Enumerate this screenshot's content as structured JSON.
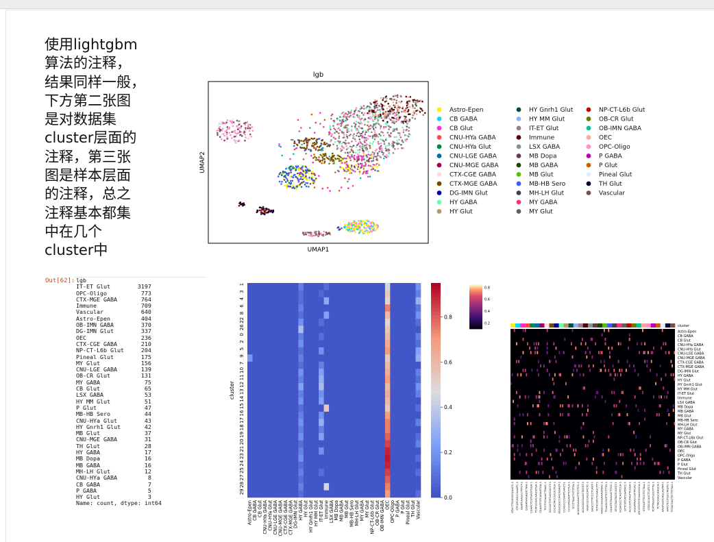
{
  "markdown_text": "使用lightgbm\n算法的注释，\n结果同样一般，\n下方第二张图\n是对数据集\ncluster层面的\n注释，第三张\n图是样本层面\n的注释，总之\n注释基本都集\n中在几个\ncluster中",
  "output": {
    "prompt": "Out[62]:",
    "header": "lgb",
    "rows": [
      [
        "IT-ET Glut",
        "3197"
      ],
      [
        "OPC-Oligo",
        "773"
      ],
      [
        "CTX-MGE GABA",
        "764"
      ],
      [
        "Immune",
        "709"
      ],
      [
        "Vascular",
        "640"
      ],
      [
        "Astro-Epen",
        "404"
      ],
      [
        "OB-IMN GABA",
        "370"
      ],
      [
        "DG-IMN Glut",
        "337"
      ],
      [
        "OEC",
        "236"
      ],
      [
        "CTX-CGE GABA",
        "210"
      ],
      [
        "NP-CT-L6b Glut",
        "204"
      ],
      [
        "Pineal Glut",
        "175"
      ],
      [
        "MY Glut",
        "156"
      ],
      [
        "CNU-LGE GABA",
        "139"
      ],
      [
        "OB-CR Glut",
        "131"
      ],
      [
        "MY GABA",
        "75"
      ],
      [
        "CB Glut",
        "65"
      ],
      [
        "LSX GABA",
        "53"
      ],
      [
        "HY MM Glut",
        "51"
      ],
      [
        "P Glut",
        "47"
      ],
      [
        "MB-HB Sero",
        "44"
      ],
      [
        "CNU-HYa Glut",
        "43"
      ],
      [
        "HY Gnrh1 Glut",
        "42"
      ],
      [
        "MB Glut",
        "37"
      ],
      [
        "CNU-MGE GABA",
        "31"
      ],
      [
        "TH Glut",
        "28"
      ],
      [
        "HY GABA",
        "17"
      ],
      [
        "MB Dopa",
        "16"
      ],
      [
        "MB GABA",
        "16"
      ],
      [
        "MH-LH Glut",
        "12"
      ],
      [
        "CNU-HYa GABA",
        "8"
      ],
      [
        "CB GABA",
        "7"
      ],
      [
        "P GABA",
        "5"
      ],
      [
        "HY Glut",
        "3"
      ]
    ],
    "footer": "Name: count, dtype: int64"
  },
  "umap": {
    "title": "lgb",
    "xlabel": "UMAP1",
    "ylabel": "UMAP2",
    "legend_placement": "right, 3 columns",
    "legend": [
      {
        "label": "Astro-Epen",
        "color": "#ffef00"
      },
      {
        "label": "CB GABA",
        "color": "#1ad2f2"
      },
      {
        "label": "CB Glut",
        "color": "#ff2fd8"
      },
      {
        "label": "CNU-HYa GABA",
        "color": "#ff4a46"
      },
      {
        "label": "CNU-HYa Glut",
        "color": "#008941"
      },
      {
        "label": "CNU-LGE GABA",
        "color": "#006fa6"
      },
      {
        "label": "CNU-MGE GABA",
        "color": "#a30059"
      },
      {
        "label": "CTX-CGE GABA",
        "color": "#ffdbe5"
      },
      {
        "label": "CTX-MGE GABA",
        "color": "#7a4900"
      },
      {
        "label": "DG-IMN Glut",
        "color": "#0000a6"
      },
      {
        "label": "HY GABA",
        "color": "#63ffac"
      },
      {
        "label": "HY Glut",
        "color": "#b79762"
      },
      {
        "label": "HY Gnrh1 Glut",
        "color": "#004d43"
      },
      {
        "label": "HY MM Glut",
        "color": "#8fb0ff"
      },
      {
        "label": "IT-ET Glut",
        "color": "#997d87"
      },
      {
        "label": "Immune",
        "color": "#5a0007"
      },
      {
        "label": "LSX GABA",
        "color": "#809693"
      },
      {
        "label": "MB Dopa",
        "color": "#6a3a4c"
      },
      {
        "label": "MB GABA",
        "color": "#1b4400"
      },
      {
        "label": "MB Glut",
        "color": "#4fc601"
      },
      {
        "label": "MB-HB Sero",
        "color": "#3b5dff"
      },
      {
        "label": "MH-LH Glut",
        "color": "#4a3b53"
      },
      {
        "label": "MY GABA",
        "color": "#ff2f80"
      },
      {
        "label": "MY Glut",
        "color": "#61615a"
      },
      {
        "label": "NP-CT-L6b Glut",
        "color": "#ba0900"
      },
      {
        "label": "OB-CR Glut",
        "color": "#6b7900"
      },
      {
        "label": "OB-IMN GABA",
        "color": "#00c2a0"
      },
      {
        "label": "OEC",
        "color": "#ffaa92"
      },
      {
        "label": "OPC-Oligo",
        "color": "#ff90c9"
      },
      {
        "label": "P GABA",
        "color": "#b903aa"
      },
      {
        "label": "P Glut",
        "color": "#d16100"
      },
      {
        "label": "Pineal Glut",
        "color": "#ddefff"
      },
      {
        "label": "TH Glut",
        "color": "#000035"
      },
      {
        "label": "Vascular",
        "color": "#7b4f4b"
      }
    ]
  },
  "chart_data": [
    {
      "type": "heatmap",
      "ylabel": "cluster",
      "xlabel": "",
      "clusters": [
        "1",
        "3",
        "4",
        "6",
        "8",
        "22",
        "26",
        "0",
        "2",
        "5",
        "9",
        "7",
        "10",
        "11",
        "12",
        "13",
        "14",
        "15",
        "16",
        "17",
        "18",
        "19",
        "20",
        "21",
        "23",
        "24",
        "25",
        "27",
        "28",
        "29"
      ],
      "row_tick_labels": [
        "1",
        "3",
        "4",
        "6",
        "8",
        "22",
        "26",
        "0",
        "2",
        "5",
        "9",
        "7",
        "10",
        "11",
        "12",
        "13",
        "14",
        "15",
        "16",
        "17",
        "18",
        "19",
        "20",
        "21",
        "23",
        "24",
        "25",
        "27",
        "28",
        "29"
      ],
      "cell_types": [
        "Astro-Epen",
        "CB GABA",
        "CB Glut",
        "CNU-HYa GABA",
        "CNU-HYa Glut",
        "CNU-LGE GABA",
        "CNU-MGE GABA",
        "CTX-CGE GABA",
        "CTX-MGE GABA",
        "DG-IMN Glut",
        "HY GABA",
        "HY Glut",
        "HY Gnrh1 Glut",
        "HY MM Glut",
        "IT-ET Glut",
        "Immune",
        "LSX GABA",
        "MB Dopa",
        "MB GABA",
        "MB Glut",
        "MB-HB Sero",
        "MH-LH Glut",
        "MY GABA",
        "MY Glut",
        "NP-CT-L6b Glut",
        "OB-CR Glut",
        "OB-IMN GABA",
        "OEC",
        "OPC-Oligo",
        "P GABA",
        "P Glut",
        "Pineal Glut",
        "TH Glut",
        "Vascular"
      ],
      "colorbar_ticks": [
        "0.0",
        "0.2",
        "0.4",
        "0.6",
        "0.8"
      ],
      "colorbar_range": [
        0.0,
        0.95
      ],
      "colormap": "coolwarm",
      "baseline_value": 0.03,
      "cells": [
        [
          0,
          10,
          0.15
        ],
        [
          0,
          15,
          0.1
        ],
        [
          0,
          27,
          0.45
        ],
        [
          0,
          33,
          0.2
        ],
        [
          1,
          10,
          0.1
        ],
        [
          1,
          14,
          0.08
        ],
        [
          1,
          27,
          0.55
        ],
        [
          1,
          33,
          0.15
        ],
        [
          2,
          10,
          0.1
        ],
        [
          2,
          15,
          0.28
        ],
        [
          2,
          27,
          0.5
        ],
        [
          2,
          33,
          0.3
        ],
        [
          3,
          10,
          0.15
        ],
        [
          3,
          27,
          0.75
        ],
        [
          3,
          33,
          0.12
        ],
        [
          4,
          10,
          0.1
        ],
        [
          4,
          15,
          0.25
        ],
        [
          4,
          27,
          0.6
        ],
        [
          4,
          33,
          0.2
        ],
        [
          5,
          10,
          0.2
        ],
        [
          5,
          14,
          0.1
        ],
        [
          5,
          27,
          0.5
        ],
        [
          5,
          33,
          0.1
        ],
        [
          6,
          10,
          0.35
        ],
        [
          6,
          27,
          0.55
        ],
        [
          7,
          10,
          0.15
        ],
        [
          7,
          14,
          0.1
        ],
        [
          7,
          27,
          0.6
        ],
        [
          7,
          33,
          0.15
        ],
        [
          8,
          10,
          0.2
        ],
        [
          8,
          27,
          0.65
        ],
        [
          8,
          33,
          0.1
        ],
        [
          9,
          10,
          0.1
        ],
        [
          9,
          14,
          0.2
        ],
        [
          9,
          27,
          0.7
        ],
        [
          9,
          33,
          0.25
        ],
        [
          10,
          0,
          0.22
        ],
        [
          10,
          10,
          0.15
        ],
        [
          10,
          27,
          0.55
        ],
        [
          10,
          33,
          0.3
        ],
        [
          11,
          10,
          0.1
        ],
        [
          11,
          14,
          0.15
        ],
        [
          11,
          27,
          0.6
        ],
        [
          12,
          10,
          0.2
        ],
        [
          12,
          14,
          0.25
        ],
        [
          12,
          27,
          0.65
        ],
        [
          12,
          33,
          0.15
        ],
        [
          13,
          10,
          0.15
        ],
        [
          13,
          14,
          0.3
        ],
        [
          13,
          27,
          0.7
        ],
        [
          13,
          33,
          0.1
        ],
        [
          14,
          10,
          0.25
        ],
        [
          14,
          14,
          0.35
        ],
        [
          14,
          27,
          0.6
        ],
        [
          14,
          33,
          0.2
        ],
        [
          15,
          10,
          0.15
        ],
        [
          15,
          14,
          0.2
        ],
        [
          15,
          27,
          0.65
        ],
        [
          15,
          33,
          0.15
        ],
        [
          16,
          10,
          0.2
        ],
        [
          16,
          14,
          0.25
        ],
        [
          16,
          27,
          0.6
        ],
        [
          17,
          10,
          0.1
        ],
        [
          17,
          15,
          0.55
        ],
        [
          17,
          27,
          0.55
        ],
        [
          17,
          33,
          0.1
        ],
        [
          18,
          10,
          0.15
        ],
        [
          18,
          14,
          0.2
        ],
        [
          18,
          27,
          0.7
        ],
        [
          19,
          10,
          0.2
        ],
        [
          19,
          14,
          0.3
        ],
        [
          19,
          27,
          0.75
        ],
        [
          19,
          33,
          0.15
        ],
        [
          20,
          10,
          0.15
        ],
        [
          20,
          14,
          0.15
        ],
        [
          20,
          27,
          0.75
        ],
        [
          21,
          10,
          0.2
        ],
        [
          21,
          14,
          0.25
        ],
        [
          21,
          27,
          0.8
        ],
        [
          21,
          33,
          0.1
        ],
        [
          22,
          10,
          0.1
        ],
        [
          22,
          27,
          0.85
        ],
        [
          22,
          33,
          0.15
        ],
        [
          23,
          10,
          0.15
        ],
        [
          23,
          14,
          0.2
        ],
        [
          23,
          27,
          0.9
        ],
        [
          24,
          10,
          0.2
        ],
        [
          24,
          27,
          0.92
        ],
        [
          24,
          33,
          0.1
        ],
        [
          25,
          10,
          0.1
        ],
        [
          25,
          27,
          0.9
        ],
        [
          26,
          10,
          0.15
        ],
        [
          26,
          14,
          0.1
        ],
        [
          26,
          27,
          0.85
        ],
        [
          26,
          33,
          0.1
        ],
        [
          27,
          10,
          0.1
        ],
        [
          27,
          27,
          0.8
        ],
        [
          28,
          10,
          0.15
        ],
        [
          28,
          15,
          0.45
        ],
        [
          28,
          27,
          0.75
        ],
        [
          29,
          10,
          0.1
        ],
        [
          29,
          27,
          0.7
        ],
        [
          29,
          33,
          0.1
        ]
      ]
    },
    {
      "type": "heatmap",
      "title": "",
      "annotation_row_label": "cluster",
      "row_labels": [
        "Astro-Epen",
        "CB GABA",
        "CB Glut",
        "CNU-HYa GABA",
        "CNU-HYa Glut",
        "CNU-LGE GABA",
        "CNU-MGE GABA",
        "CTX-CGE GABA",
        "CTX-MGE GABA",
        "DG-IMN Glut",
        "HY GABA",
        "HY Glut",
        "HY Gnrh1 Glut",
        "HY MM Glut",
        "IT-ET Glut",
        "Immune",
        "LSX GABA",
        "MB Dopa",
        "MB GABA",
        "MB Glut",
        "MB-HB Sero",
        "MH-LH Glut",
        "MY GABA",
        "MY Glut",
        "NP-CT-L6b Glut",
        "OB-CR Glut",
        "OB-IMN GABA",
        "OEC",
        "OPC-Oligo",
        "P GABA",
        "P Glut",
        "Pineal Glut",
        "TH Glut",
        "Vascular"
      ],
      "colorbar_ticks": [
        "0.2",
        "0.4",
        "0.6",
        "0.8"
      ],
      "colormap": "magma",
      "bright_rows": [
        0,
        3,
        4,
        5,
        7,
        8,
        9,
        10,
        14,
        15,
        17,
        19,
        21,
        24,
        26,
        27,
        28,
        30,
        32
      ],
      "sample_labels": [
        "GTACTTGAGGCGAACG-1",
        "GTCATCAGCCAAATC-1",
        "GAATCAAGCCTTTCT-1",
        "GGAATAAGAGTCTAA-1",
        "CGAACTCGTGAGTGGA-1",
        "TCATGCAACAAGGTGA-1",
        "CAAAGTGTCAGAGTGA-1",
        "TCCTGCAAACTTAAC-1",
        "GGCACTGTCAGCACCT-1",
        "CCCACTACCGCGCTCA-1",
        "AGGCGGCCAACAGAGT-1",
        "CCAGCCCGAATCAACT-1",
        "CCCGTAAAGTTCTTCA-1",
        "TCCTTAACTGTTTTA-1",
        "ACAGGGAAAGTTCCTCG-1",
        "ACACAGCAAGCTACGT-1",
        "AAACGCCAGCATCTC-1",
        "GAGCCTTTCCCTCAGT-1",
        "TCTACGTCTCAAGCTT-1",
        "AAGCCGGGAAAGTAAC-1",
        "TCAAGCGGTTCCTTTG-1",
        "CAAGTCTAAGACTTGC-1",
        "ATGCTAGTAGTCAGGT-1",
        "GCAAGCCTCAGTTCCA-1",
        "GTTCGTCATCAATACC-1",
        "ACCCGTCTAGTTCGGA-1",
        "GGGATAACCGTTTCAC-1",
        "ATCGTGTGTCGAGGGCA-1",
        "GTGGATTTCCTCCTAA-1",
        "GTACACAGCTCATCC-1",
        "TCATTAGGTGGCTTTG-1",
        "TCTACAAGCAAGCA-1",
        "AAGTGGTCAGCAGTAT-1",
        "AATCTCCTGCCTAGTC-1",
        "TCTACTAGTTCTTTTAG-1"
      ]
    }
  ]
}
